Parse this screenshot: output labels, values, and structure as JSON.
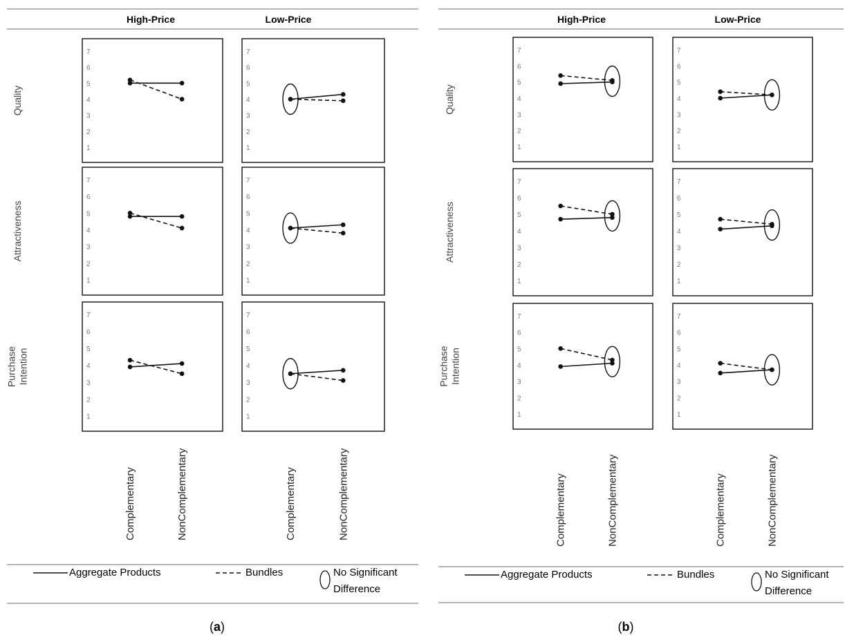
{
  "columns": [
    "High-Price",
    "Low-Price"
  ],
  "rows": [
    "Quality",
    "Attractiveness",
    "Purchase Intention"
  ],
  "row_label_lines": [
    [
      "Quality"
    ],
    [
      "Attractiveness"
    ],
    [
      "Purchase",
      "Intention"
    ]
  ],
  "x_categories": [
    "Complementary",
    "NonComplementary"
  ],
  "y_ticks": [
    "1",
    "2",
    "3",
    "4",
    "5",
    "6",
    "7"
  ],
  "legend": {
    "aggregate": "Aggregate Products",
    "bundles": "Bundles",
    "nsd_line1": "No Significant",
    "nsd_line2": "Difference"
  },
  "panel_labels": [
    {
      "open": "(",
      "letter": "a",
      "close": ")"
    },
    {
      "open": "(",
      "letter": "b",
      "close": ")"
    }
  ],
  "chart_data": [
    {
      "type": "line",
      "panel": "a",
      "ylim": [
        1,
        7
      ],
      "categories": [
        "Complementary",
        "NonComplementary"
      ],
      "subplots": [
        {
          "column": "High-Price",
          "row": "Quality",
          "series": [
            {
              "name": "Aggregate Products",
              "values": [
                5.0,
                5.0
              ]
            },
            {
              "name": "Bundles",
              "values": [
                5.2,
                4.0
              ]
            }
          ],
          "nsd": null
        },
        {
          "column": "Low-Price",
          "row": "Quality",
          "series": [
            {
              "name": "Aggregate Products",
              "values": [
                4.0,
                4.3
              ]
            },
            {
              "name": "Bundles",
              "values": [
                4.0,
                3.9
              ]
            }
          ],
          "nsd": "Complementary"
        },
        {
          "column": "High-Price",
          "row": "Attractiveness",
          "series": [
            {
              "name": "Aggregate Products",
              "values": [
                4.8,
                4.8
              ]
            },
            {
              "name": "Bundles",
              "values": [
                5.0,
                4.1
              ]
            }
          ],
          "nsd": null
        },
        {
          "column": "Low-Price",
          "row": "Attractiveness",
          "series": [
            {
              "name": "Aggregate Products",
              "values": [
                4.1,
                4.3
              ]
            },
            {
              "name": "Bundles",
              "values": [
                4.1,
                3.8
              ]
            }
          ],
          "nsd": "Complementary"
        },
        {
          "column": "High-Price",
          "row": "Purchase Intention",
          "series": [
            {
              "name": "Aggregate Products",
              "values": [
                3.9,
                4.1
              ]
            },
            {
              "name": "Bundles",
              "values": [
                4.3,
                3.5
              ]
            }
          ],
          "nsd": null
        },
        {
          "column": "Low-Price",
          "row": "Purchase Intention",
          "series": [
            {
              "name": "Aggregate Products",
              "values": [
                3.5,
                3.7
              ]
            },
            {
              "name": "Bundles",
              "values": [
                3.5,
                3.1
              ]
            }
          ],
          "nsd": "Complementary"
        }
      ]
    },
    {
      "type": "line",
      "panel": "b",
      "ylim": [
        1,
        7
      ],
      "categories": [
        "Complementary",
        "NonComplementary"
      ],
      "subplots": [
        {
          "column": "High-Price",
          "row": "Quality",
          "series": [
            {
              "name": "Aggregate Products",
              "values": [
                4.9,
                5.0
              ]
            },
            {
              "name": "Bundles",
              "values": [
                5.4,
                5.1
              ]
            }
          ],
          "nsd": "NonComplementary"
        },
        {
          "column": "Low-Price",
          "row": "Quality",
          "series": [
            {
              "name": "Aggregate Products",
              "values": [
                4.0,
                4.2
              ]
            },
            {
              "name": "Bundles",
              "values": [
                4.4,
                4.2
              ]
            }
          ],
          "nsd": "NonComplementary"
        },
        {
          "column": "High-Price",
          "row": "Attractiveness",
          "series": [
            {
              "name": "Aggregate Products",
              "values": [
                4.7,
                4.8
              ]
            },
            {
              "name": "Bundles",
              "values": [
                5.5,
                5.0
              ]
            }
          ],
          "nsd": "NonComplementary"
        },
        {
          "column": "Low-Price",
          "row": "Attractiveness",
          "series": [
            {
              "name": "Aggregate Products",
              "values": [
                4.1,
                4.3
              ]
            },
            {
              "name": "Bundles",
              "values": [
                4.7,
                4.4
              ]
            }
          ],
          "nsd": "NonComplementary"
        },
        {
          "column": "High-Price",
          "row": "Purchase Intention",
          "series": [
            {
              "name": "Aggregate Products",
              "values": [
                3.9,
                4.1
              ]
            },
            {
              "name": "Bundles",
              "values": [
                5.0,
                4.3
              ]
            }
          ],
          "nsd": "NonComplementary"
        },
        {
          "column": "Low-Price",
          "row": "Purchase Intention",
          "series": [
            {
              "name": "Aggregate Products",
              "values": [
                3.5,
                3.7
              ]
            },
            {
              "name": "Bundles",
              "values": [
                4.1,
                3.7
              ]
            }
          ],
          "nsd": "NonComplementary"
        }
      ]
    }
  ]
}
